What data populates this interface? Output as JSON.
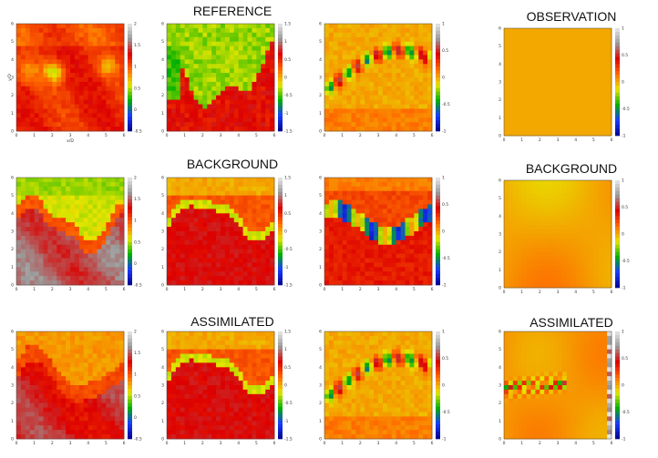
{
  "titles": {
    "reference": "REFERENCE",
    "background_left": "BACKGROUND",
    "assimilated_left": "ASSIMILATED",
    "observation": "OBSERVATION",
    "background_right": "BACKGROUND",
    "assimilated_right": "ASSIMILATED"
  },
  "colormap": {
    "stops": [
      "#00008a",
      "#1a3cff",
      "#00b000",
      "#e6e600",
      "#ff6a00",
      "#dd0000",
      "#9a9a9a",
      "#e8e8e8"
    ]
  },
  "chart_data": [
    {
      "type": "heatmap",
      "row": "reference",
      "col": 1,
      "xlabel": "x/D",
      "ylabel": "y/D",
      "xlim": [
        0,
        6
      ],
      "ylim": [
        0,
        6
      ],
      "x_ticks": [
        "0",
        "1",
        "2",
        "3",
        "4",
        "5",
        "6"
      ],
      "y_ticks": [
        "0",
        "1",
        "2",
        "3",
        "4",
        "5",
        "6"
      ],
      "colorbar": {
        "min": -0.5,
        "max": 2,
        "ticks": [
          "2",
          "1.5",
          "1",
          "0.5",
          "0",
          "-0.5"
        ]
      },
      "pattern": "warm-dominant"
    },
    {
      "type": "heatmap",
      "row": "reference",
      "col": 2,
      "xlim": [
        0,
        6
      ],
      "ylim": [
        0,
        6
      ],
      "x_ticks": [
        "0",
        "1",
        "2",
        "3",
        "4",
        "5",
        "6"
      ],
      "y_ticks": [
        "0",
        "1",
        "2",
        "3",
        "4",
        "5",
        "6"
      ],
      "colorbar": {
        "min": -1.5,
        "max": 1.5,
        "ticks": [
          "1.5",
          "1",
          "0.5",
          "0",
          "-0.5",
          "-1",
          "-1.5"
        ]
      },
      "pattern": "split-diagonal"
    },
    {
      "type": "heatmap",
      "row": "reference",
      "col": 3,
      "xlim": [
        0,
        6
      ],
      "ylim": [
        0,
        6
      ],
      "x_ticks": [
        "0",
        "1",
        "2",
        "3",
        "4",
        "5",
        "6"
      ],
      "y_ticks": [
        "0",
        "1",
        "2",
        "3",
        "4",
        "5",
        "6"
      ],
      "colorbar": {
        "min": -1,
        "max": 1,
        "ticks": [
          "1",
          "0.5",
          "0",
          "-0.5",
          "-1"
        ]
      },
      "pattern": "vortex"
    },
    {
      "type": "heatmap",
      "row": "observation",
      "col": 4,
      "xlim": [
        0,
        6
      ],
      "ylim": [
        0,
        6
      ],
      "x_ticks": [
        "0",
        "1",
        "2",
        "3",
        "4",
        "5",
        "6"
      ],
      "y_ticks": [
        "0",
        "1",
        "2",
        "3",
        "4",
        "5",
        "6"
      ],
      "colorbar": {
        "min": -1,
        "max": 1,
        "ticks": [
          "1",
          "0.5",
          "0",
          "-0.5",
          "-1"
        ]
      },
      "pattern": "uniform"
    },
    {
      "type": "heatmap",
      "row": "background",
      "col": 1,
      "xlim": [
        0,
        6
      ],
      "ylim": [
        0,
        6
      ],
      "x_ticks": [
        "0",
        "1",
        "2",
        "3",
        "4",
        "5",
        "6"
      ],
      "y_ticks": [
        "0",
        "1",
        "2",
        "3",
        "4",
        "5",
        "6"
      ],
      "colorbar": {
        "min": -0.5,
        "max": 2,
        "ticks": [
          "2",
          "1.5",
          "1",
          "0.5",
          "0",
          "-0.5"
        ]
      },
      "pattern": "background-main"
    },
    {
      "type": "heatmap",
      "row": "background",
      "col": 2,
      "xlim": [
        0,
        6
      ],
      "ylim": [
        0,
        6
      ],
      "x_ticks": [
        "0",
        "1",
        "2",
        "3",
        "4",
        "5",
        "6"
      ],
      "y_ticks": [
        "0",
        "1",
        "2",
        "3",
        "4",
        "5",
        "6"
      ],
      "colorbar": {
        "min": -1.5,
        "max": 1.5,
        "ticks": [
          "1.5",
          "1",
          "0.5",
          "0",
          "-0.5",
          "-1",
          "-1.5"
        ]
      },
      "pattern": "background-mid"
    },
    {
      "type": "heatmap",
      "row": "background",
      "col": 3,
      "xlim": [
        0,
        6
      ],
      "ylim": [
        0,
        6
      ],
      "x_ticks": [
        "0",
        "1",
        "2",
        "3",
        "4",
        "5",
        "6"
      ],
      "y_ticks": [
        "0",
        "1",
        "2",
        "3",
        "4",
        "5",
        "6"
      ],
      "colorbar": {
        "min": -1,
        "max": 1,
        "ticks": [
          "1",
          "0.5",
          "0",
          "-0.5",
          "-1"
        ]
      },
      "pattern": "background-right"
    },
    {
      "type": "heatmap",
      "row": "background",
      "col": 4,
      "xlim": [
        0,
        6
      ],
      "ylim": [
        0,
        6
      ],
      "x_ticks": [
        "0",
        "1",
        "2",
        "3",
        "4",
        "5",
        "6"
      ],
      "y_ticks": [
        "0",
        "1",
        "2",
        "3",
        "4",
        "5",
        "6"
      ],
      "colorbar": {
        "min": -1,
        "max": 1,
        "ticks": [
          "1",
          "0.5",
          "0",
          "-0.5",
          "-1"
        ]
      },
      "pattern": "smooth"
    },
    {
      "type": "heatmap",
      "row": "assimilated",
      "col": 1,
      "xlim": [
        0,
        6
      ],
      "ylim": [
        0,
        6
      ],
      "x_ticks": [
        "0",
        "1",
        "2",
        "3",
        "4",
        "5",
        "6"
      ],
      "y_ticks": [
        "0",
        "1",
        "2",
        "3",
        "4",
        "5",
        "6"
      ],
      "colorbar": {
        "min": -0.5,
        "max": 2,
        "ticks": [
          "2",
          "1.5",
          "1",
          "0.5",
          "0",
          "-0.5"
        ]
      },
      "pattern": "assim-main"
    },
    {
      "type": "heatmap",
      "row": "assimilated",
      "col": 2,
      "xlim": [
        0,
        6
      ],
      "ylim": [
        0,
        6
      ],
      "x_ticks": [
        "0",
        "1",
        "2",
        "3",
        "4",
        "5",
        "6"
      ],
      "y_ticks": [
        "0",
        "1",
        "2",
        "3",
        "4",
        "5",
        "6"
      ],
      "colorbar": {
        "min": -1.5,
        "max": 1.5,
        "ticks": [
          "1.5",
          "1",
          "0.5",
          "0",
          "-0.5",
          "-1",
          "-1.5"
        ]
      },
      "pattern": "background-mid"
    },
    {
      "type": "heatmap",
      "row": "assimilated",
      "col": 3,
      "xlim": [
        0,
        6
      ],
      "ylim": [
        0,
        6
      ],
      "x_ticks": [
        "0",
        "1",
        "2",
        "3",
        "4",
        "5",
        "6"
      ],
      "y_ticks": [
        "0",
        "1",
        "2",
        "3",
        "4",
        "5",
        "6"
      ],
      "colorbar": {
        "min": -1,
        "max": 1,
        "ticks": [
          "1",
          "0.5",
          "0",
          "-0.5",
          "-1"
        ]
      },
      "pattern": "vortex"
    },
    {
      "type": "heatmap",
      "row": "assimilated",
      "col": 4,
      "xlim": [
        0,
        6
      ],
      "ylim": [
        0,
        6
      ],
      "x_ticks": [
        "0",
        "1",
        "2",
        "3",
        "4",
        "5",
        "6"
      ],
      "y_ticks": [
        "0",
        "1",
        "2",
        "3",
        "4",
        "5",
        "6"
      ],
      "colorbar": {
        "min": -1,
        "max": 1,
        "ticks": [
          "1",
          "0.5",
          "0",
          "-0.5",
          "-1"
        ]
      },
      "pattern": "noisy"
    }
  ]
}
